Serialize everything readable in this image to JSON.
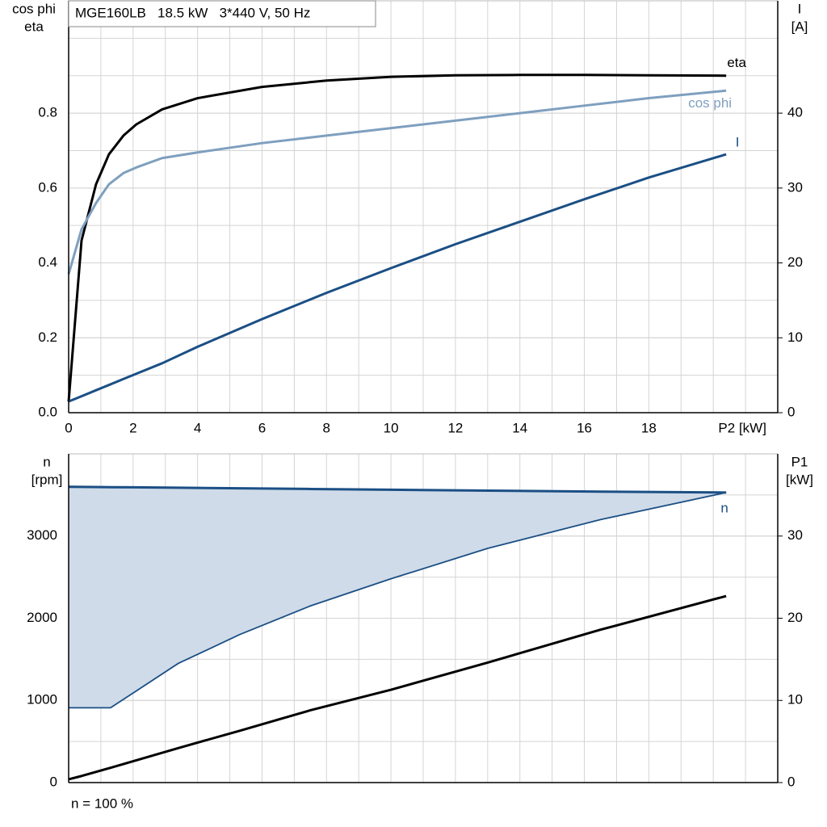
{
  "chart_data": [
    {
      "type": "line",
      "header": "MGE160LB   18.5 kW   3*440 V, 50 Hz",
      "ylabel": [
        "cos phi",
        "eta"
      ],
      "y2label": [
        "I",
        "[A]"
      ],
      "x": [
        0,
        0.4,
        0.85,
        1.25,
        1.7,
        2.1,
        2.9,
        4,
        6,
        8,
        10,
        12,
        14,
        16,
        18,
        20.4
      ],
      "series": [
        {
          "name": "eta",
          "color": "#000000",
          "values": [
            0.03,
            0.46,
            0.61,
            0.69,
            0.74,
            0.77,
            0.81,
            0.84,
            0.87,
            0.887,
            0.897,
            0.901,
            0.902,
            0.902,
            0.901,
            0.9
          ]
        },
        {
          "name": "cos phi",
          "color": "#7f9fbf",
          "values": [
            0.37,
            0.49,
            0.56,
            0.61,
            0.64,
            0.655,
            0.68,
            0.695,
            0.72,
            0.74,
            0.76,
            0.78,
            0.8,
            0.82,
            0.84,
            0.86
          ]
        },
        {
          "name": "I",
          "color": "#1b4f85",
          "axis": "y2",
          "values": [
            1.5,
            2.2,
            3.0,
            3.7,
            4.5,
            5.2,
            6.6,
            8.8,
            12.5,
            16.0,
            19.3,
            22.5,
            25.5,
            28.5,
            31.4,
            34.5
          ]
        }
      ],
      "xlim": [
        0,
        22
      ],
      "xticks": [
        0,
        2,
        4,
        6,
        8,
        10,
        12,
        14,
        16,
        18,
        {
          "value": 20,
          "label": "P2 [kW]"
        }
      ],
      "ylim": [
        0,
        1.1
      ],
      "yticks": [
        {
          "value": 0,
          "label": "0.0"
        },
        0.2,
        0.4,
        0.6,
        0.8
      ],
      "y2lim": [
        0,
        55
      ],
      "y2ticks": [
        0,
        10,
        20,
        30,
        40
      ],
      "grid": true,
      "show_xtick_labels": true
    },
    {
      "type": "band",
      "ylabel": [
        "n",
        "[rpm]"
      ],
      "y2label": [
        "P1",
        "[kW]"
      ],
      "annotation": "n = 100 %",
      "x": [
        0,
        0.4,
        1.3,
        2,
        3.4,
        5.3,
        7.5,
        10,
        13,
        16.5,
        20.4
      ],
      "series": [
        {
          "name": "n",
          "color": "#1b4f85",
          "fill": "#cfdbe8",
          "values": [
            3600,
            3598,
            3595,
            3593,
            3588,
            3581,
            3573,
            3564,
            3553,
            3541,
            3530
          ],
          "values_min": [
            910,
            910,
            910,
            1090,
            1450,
            1800,
            2150,
            2480,
            2850,
            3200,
            3530
          ]
        },
        {
          "color": "#000000",
          "axis": "y2",
          "values": [
            0.4,
            0.8,
            1.8,
            2.6,
            4.2,
            6.3,
            8.8,
            11.3,
            14.6,
            18.6,
            22.7
          ]
        }
      ],
      "xlim": [
        0,
        22
      ],
      "xticks": [
        0,
        2,
        4,
        6,
        8,
        10,
        12,
        14,
        16,
        18,
        20
      ],
      "ylim": [
        0,
        4000
      ],
      "yticks": [
        0,
        1000,
        2000,
        3000
      ],
      "y2lim": [
        0,
        40
      ],
      "y2ticks": [
        0,
        10,
        20,
        30
      ],
      "grid": true,
      "show_xtick_labels": false
    }
  ]
}
